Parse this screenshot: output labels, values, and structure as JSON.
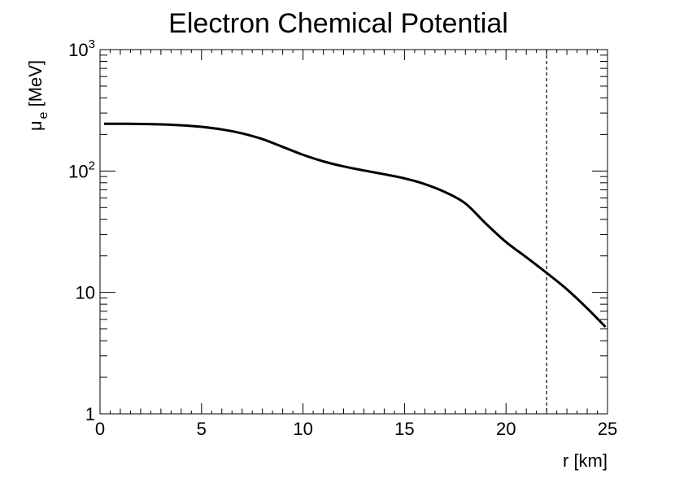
{
  "chart_data": {
    "type": "line",
    "title": "Electron Chemical Potential",
    "xlabel": "r [km]",
    "ylabel": {
      "symbol": "μ",
      "subscript": "e",
      "unit": "[MeV]"
    },
    "xlim": [
      0,
      25
    ],
    "ylim": [
      1,
      1000
    ],
    "yscale": "log",
    "grid": false,
    "x_ticks": [
      0,
      5,
      10,
      15,
      20,
      25
    ],
    "y_ticks": [
      {
        "value": 1,
        "base": "1",
        "exp": ""
      },
      {
        "value": 10,
        "base": "10",
        "exp": ""
      },
      {
        "value": 100,
        "base": "10",
        "exp": "2"
      },
      {
        "value": 1000,
        "base": "10",
        "exp": "3"
      }
    ],
    "vline": {
      "x": 22,
      "style": "dashed"
    },
    "series": [
      {
        "x": [
          0.2,
          1,
          2,
          3,
          4,
          5,
          6,
          7,
          8,
          9,
          10,
          11,
          12,
          13,
          14,
          15,
          16,
          17,
          18,
          19,
          20,
          21,
          22,
          23,
          24,
          24.9
        ],
        "values": [
          245,
          245,
          244,
          242,
          238,
          231,
          220,
          204,
          183,
          158,
          136,
          120,
          109,
          101,
          94,
          87,
          78,
          67,
          54,
          37,
          26,
          19.5,
          14.5,
          10.6,
          7.4,
          5.2
        ]
      }
    ]
  }
}
